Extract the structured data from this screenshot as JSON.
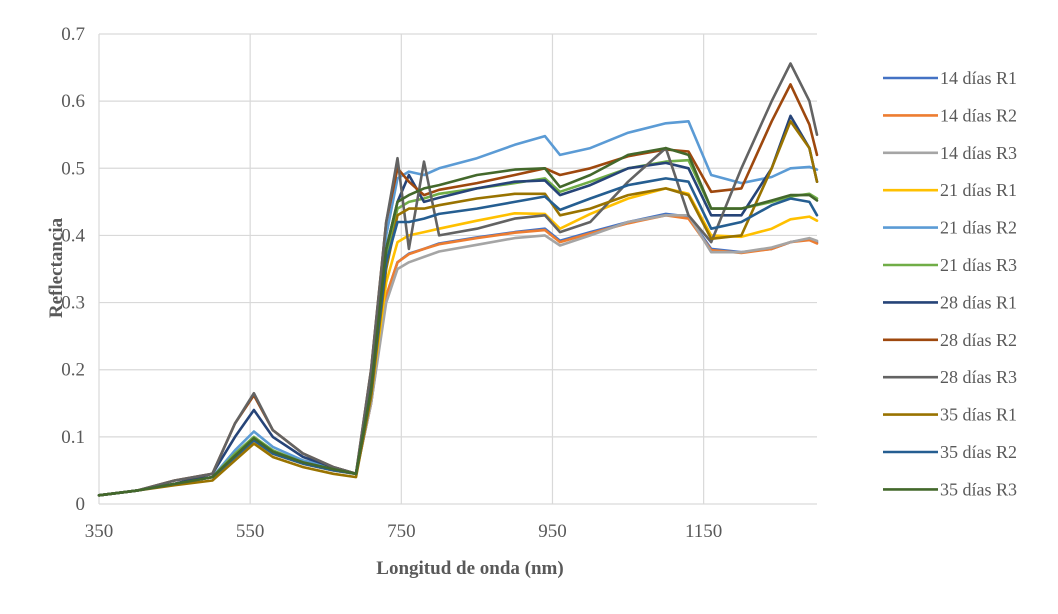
{
  "chart_data": {
    "type": "line",
    "title": "",
    "xlabel": "Longitud de onda (nm)",
    "ylabel": "Reflectancia",
    "xlim": [
      350,
      1300
    ],
    "ylim": [
      0,
      0.7
    ],
    "x_ticks": [
      350,
      550,
      750,
      950,
      1150
    ],
    "y_ticks": [
      0,
      0.1,
      0.2,
      0.3,
      0.4,
      0.5,
      0.6,
      0.7
    ],
    "y_tick_labels": [
      "0",
      "0.1",
      "0.2",
      "0.3",
      "0.4",
      "0.5",
      "0.6",
      "0.7"
    ],
    "grid": true,
    "legend_position": "right",
    "x": [
      350,
      400,
      450,
      500,
      530,
      555,
      580,
      620,
      660,
      690,
      710,
      730,
      745,
      760,
      780,
      800,
      850,
      900,
      940,
      960,
      1000,
      1050,
      1100,
      1130,
      1160,
      1200,
      1240,
      1265,
      1290,
      1300
    ],
    "series": [
      {
        "name": "14 días R1",
        "color": "#4472c4",
        "values": [
          0.013,
          0.02,
          0.03,
          0.04,
          0.07,
          0.095,
          0.075,
          0.06,
          0.05,
          0.045,
          0.15,
          0.31,
          0.36,
          0.373,
          0.38,
          0.388,
          0.397,
          0.405,
          0.41,
          0.392,
          0.405,
          0.42,
          0.432,
          0.428,
          0.38,
          0.375,
          0.38,
          0.39,
          0.395,
          0.39
        ]
      },
      {
        "name": "14 días R2",
        "color": "#ed7d31",
        "values": [
          0.013,
          0.02,
          0.03,
          0.04,
          0.07,
          0.095,
          0.075,
          0.06,
          0.05,
          0.045,
          0.15,
          0.31,
          0.36,
          0.372,
          0.38,
          0.387,
          0.396,
          0.404,
          0.408,
          0.39,
          0.403,
          0.418,
          0.43,
          0.425,
          0.378,
          0.374,
          0.38,
          0.39,
          0.393,
          0.388
        ]
      },
      {
        "name": "14 días R3",
        "color": "#a5a5a5",
        "values": [
          0.013,
          0.02,
          0.03,
          0.04,
          0.07,
          0.095,
          0.075,
          0.06,
          0.05,
          0.045,
          0.15,
          0.3,
          0.35,
          0.36,
          0.368,
          0.376,
          0.386,
          0.396,
          0.4,
          0.385,
          0.4,
          0.42,
          0.43,
          0.43,
          0.375,
          0.375,
          0.382,
          0.39,
          0.396,
          0.392
        ]
      },
      {
        "name": "21 días R1",
        "color": "#ffc000",
        "values": [
          0.013,
          0.02,
          0.03,
          0.04,
          0.07,
          0.09,
          0.075,
          0.06,
          0.05,
          0.045,
          0.16,
          0.33,
          0.39,
          0.4,
          0.405,
          0.41,
          0.422,
          0.433,
          0.432,
          0.41,
          0.432,
          0.455,
          0.47,
          0.462,
          0.4,
          0.398,
          0.41,
          0.424,
          0.428,
          0.422
        ]
      },
      {
        "name": "21 días R2",
        "color": "#5b9bd5",
        "values": [
          0.013,
          0.02,
          0.03,
          0.04,
          0.08,
          0.108,
          0.085,
          0.065,
          0.055,
          0.045,
          0.18,
          0.4,
          0.485,
          0.495,
          0.49,
          0.5,
          0.515,
          0.535,
          0.548,
          0.52,
          0.53,
          0.553,
          0.567,
          0.57,
          0.49,
          0.478,
          0.487,
          0.5,
          0.502,
          0.498
        ]
      },
      {
        "name": "21 días R3",
        "color": "#70ad47",
        "values": [
          0.013,
          0.02,
          0.03,
          0.04,
          0.075,
          0.1,
          0.08,
          0.062,
          0.052,
          0.045,
          0.17,
          0.37,
          0.44,
          0.45,
          0.455,
          0.462,
          0.47,
          0.478,
          0.485,
          0.465,
          0.48,
          0.5,
          0.51,
          0.512,
          0.44,
          0.44,
          0.45,
          0.458,
          0.462,
          0.455
        ]
      },
      {
        "name": "28 días R1",
        "color": "#264478",
        "values": [
          0.013,
          0.02,
          0.03,
          0.045,
          0.1,
          0.14,
          0.1,
          0.07,
          0.055,
          0.045,
          0.18,
          0.38,
          0.45,
          0.49,
          0.45,
          0.456,
          0.47,
          0.48,
          0.482,
          0.46,
          0.475,
          0.5,
          0.508,
          0.5,
          0.43,
          0.43,
          0.5,
          0.578,
          0.53,
          0.48
        ]
      },
      {
        "name": "28 días R2",
        "color": "#9e480e",
        "values": [
          0.013,
          0.02,
          0.035,
          0.045,
          0.12,
          0.162,
          0.11,
          0.075,
          0.055,
          0.045,
          0.2,
          0.42,
          0.5,
          0.48,
          0.46,
          0.468,
          0.478,
          0.49,
          0.5,
          0.49,
          0.5,
          0.518,
          0.528,
          0.525,
          0.465,
          0.47,
          0.57,
          0.625,
          0.565,
          0.52
        ]
      },
      {
        "name": "28 días R3",
        "color": "#636363",
        "values": [
          0.013,
          0.02,
          0.035,
          0.045,
          0.12,
          0.165,
          0.11,
          0.075,
          0.055,
          0.045,
          0.2,
          0.42,
          0.515,
          0.38,
          0.51,
          0.4,
          0.41,
          0.425,
          0.43,
          0.405,
          0.42,
          0.48,
          0.53,
          0.43,
          0.39,
          0.5,
          0.6,
          0.656,
          0.6,
          0.55
        ]
      },
      {
        "name": "35 días R1",
        "color": "#997300",
        "values": [
          0.013,
          0.02,
          0.028,
          0.035,
          0.065,
          0.09,
          0.07,
          0.055,
          0.045,
          0.04,
          0.16,
          0.35,
          0.43,
          0.44,
          0.44,
          0.445,
          0.455,
          0.462,
          0.462,
          0.43,
          0.44,
          0.46,
          0.47,
          0.46,
          0.395,
          0.4,
          0.5,
          0.57,
          0.53,
          0.48
        ]
      },
      {
        "name": "35 días R2",
        "color": "#255e91",
        "values": [
          0.013,
          0.02,
          0.03,
          0.04,
          0.07,
          0.095,
          0.075,
          0.06,
          0.05,
          0.045,
          0.17,
          0.36,
          0.42,
          0.42,
          0.425,
          0.432,
          0.44,
          0.45,
          0.458,
          0.438,
          0.455,
          0.475,
          0.485,
          0.48,
          0.41,
          0.42,
          0.445,
          0.455,
          0.45,
          0.43
        ]
      },
      {
        "name": "35 días R3",
        "color": "#43682b",
        "values": [
          0.013,
          0.02,
          0.03,
          0.04,
          0.072,
          0.098,
          0.078,
          0.062,
          0.052,
          0.045,
          0.17,
          0.38,
          0.45,
          0.46,
          0.47,
          0.475,
          0.49,
          0.498,
          0.5,
          0.472,
          0.49,
          0.52,
          0.53,
          0.52,
          0.44,
          0.44,
          0.452,
          0.46,
          0.46,
          0.452
        ]
      }
    ]
  }
}
